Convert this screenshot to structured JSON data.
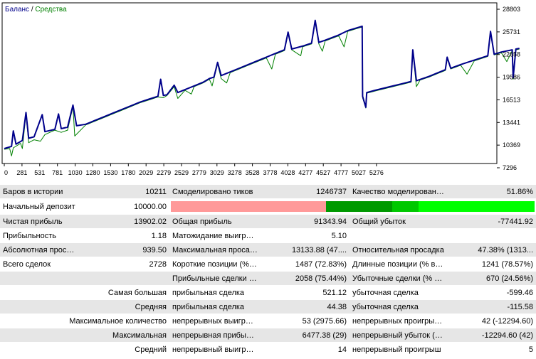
{
  "colors": {
    "balance": "#00008b",
    "equity": "#008000",
    "axis": "#000000",
    "quality_pink": "#ff9999",
    "quality_dark": "#009900",
    "quality_mid": "#00c800",
    "quality_bright": "#00ff00"
  },
  "chart_data": {
    "type": "line",
    "legend": {
      "balance": "Баланс",
      "separator": " / ",
      "equity": "Средства"
    },
    "x_ticks": [
      "0",
      "281",
      "531",
      "781",
      "1030",
      "1280",
      "1530",
      "1780",
      "2029",
      "2279",
      "2529",
      "2779",
      "3029",
      "3278",
      "3528",
      "3778",
      "4028",
      "4277",
      "4527",
      "4777",
      "5027",
      "5276"
    ],
    "y_ticks": [
      "28803",
      "25731",
      "22658",
      "19586",
      "16513",
      "13441",
      "10369",
      "7296"
    ],
    "xlim": [
      0,
      5450
    ],
    "ylim": [
      7296,
      28803
    ],
    "series": [
      {
        "name": "Баланс",
        "points": [
          [
            0,
            9900
          ],
          [
            80,
            10200
          ],
          [
            100,
            12300
          ],
          [
            130,
            10500
          ],
          [
            200,
            11000
          ],
          [
            240,
            14800
          ],
          [
            270,
            11300
          ],
          [
            330,
            11500
          ],
          [
            420,
            14500
          ],
          [
            450,
            12200
          ],
          [
            560,
            12500
          ],
          [
            600,
            14600
          ],
          [
            630,
            12600
          ],
          [
            700,
            12800
          ],
          [
            760,
            15800
          ],
          [
            800,
            13000
          ],
          [
            900,
            13200
          ],
          [
            1000,
            13700
          ],
          [
            1100,
            14200
          ],
          [
            1200,
            14700
          ],
          [
            1300,
            15200
          ],
          [
            1400,
            15700
          ],
          [
            1500,
            16200
          ],
          [
            1600,
            16600
          ],
          [
            1700,
            17000
          ],
          [
            1730,
            19300
          ],
          [
            1760,
            17100
          ],
          [
            1800,
            17200
          ],
          [
            1880,
            18500
          ],
          [
            1920,
            17500
          ],
          [
            2000,
            17900
          ],
          [
            2100,
            18400
          ],
          [
            2200,
            18900
          ],
          [
            2270,
            19400
          ],
          [
            2320,
            19600
          ],
          [
            2360,
            21600
          ],
          [
            2400,
            19800
          ],
          [
            2500,
            20300
          ],
          [
            2600,
            20800
          ],
          [
            2700,
            21300
          ],
          [
            2800,
            21800
          ],
          [
            2900,
            22300
          ],
          [
            3000,
            22800
          ],
          [
            3100,
            23300
          ],
          [
            3140,
            25700
          ],
          [
            3180,
            23400
          ],
          [
            3300,
            23800
          ],
          [
            3400,
            24200
          ],
          [
            3440,
            27300
          ],
          [
            3480,
            24300
          ],
          [
            3550,
            24600
          ],
          [
            3700,
            25300
          ],
          [
            3800,
            25900
          ],
          [
            3960,
            26500
          ],
          [
            3965,
            17000
          ],
          [
            4000,
            15500
          ],
          [
            4010,
            17500
          ],
          [
            4100,
            17800
          ],
          [
            4200,
            18100
          ],
          [
            4300,
            18400
          ],
          [
            4400,
            18700
          ],
          [
            4500,
            19000
          ],
          [
            4520,
            23300
          ],
          [
            4560,
            19100
          ],
          [
            4700,
            19700
          ],
          [
            4800,
            20200
          ],
          [
            4880,
            20600
          ],
          [
            4900,
            22300
          ],
          [
            4940,
            20800
          ],
          [
            5050,
            21300
          ],
          [
            5200,
            21900
          ],
          [
            5350,
            22500
          ],
          [
            5380,
            25800
          ],
          [
            5420,
            22700
          ],
          [
            5500,
            23000
          ],
          [
            5620,
            23300
          ],
          [
            5630,
            19500
          ],
          [
            5660,
            23400
          ],
          [
            5700,
            23500
          ]
        ]
      },
      {
        "name": "Средства",
        "points": [
          [
            0,
            9800
          ],
          [
            60,
            9900
          ],
          [
            80,
            8900
          ],
          [
            100,
            10000
          ],
          [
            180,
            10600
          ],
          [
            200,
            9900
          ],
          [
            240,
            14600
          ],
          [
            270,
            10700
          ],
          [
            330,
            11100
          ],
          [
            400,
            10900
          ],
          [
            450,
            11800
          ],
          [
            560,
            12400
          ],
          [
            630,
            12100
          ],
          [
            700,
            12400
          ],
          [
            760,
            15600
          ],
          [
            780,
            11600
          ],
          [
            900,
            13100
          ],
          [
            1000,
            13600
          ],
          [
            1100,
            14100
          ],
          [
            1200,
            14600
          ],
          [
            1300,
            15100
          ],
          [
            1400,
            15600
          ],
          [
            1500,
            16100
          ],
          [
            1600,
            16500
          ],
          [
            1700,
            16900
          ],
          [
            1760,
            16800
          ],
          [
            1800,
            17100
          ],
          [
            1880,
            18300
          ],
          [
            1920,
            16700
          ],
          [
            2000,
            17800
          ],
          [
            2070,
            17300
          ],
          [
            2100,
            18300
          ],
          [
            2200,
            18800
          ],
          [
            2270,
            19300
          ],
          [
            2300,
            18400
          ],
          [
            2360,
            21400
          ],
          [
            2400,
            19400
          ],
          [
            2460,
            18800
          ],
          [
            2500,
            20200
          ],
          [
            2600,
            20700
          ],
          [
            2700,
            21200
          ],
          [
            2800,
            21700
          ],
          [
            2900,
            22200
          ],
          [
            2960,
            20700
          ],
          [
            3000,
            22700
          ],
          [
            3100,
            23200
          ],
          [
            3140,
            25500
          ],
          [
            3180,
            23300
          ],
          [
            3280,
            22500
          ],
          [
            3300,
            23700
          ],
          [
            3400,
            24100
          ],
          [
            3440,
            27100
          ],
          [
            3480,
            24100
          ],
          [
            3520,
            23100
          ],
          [
            3550,
            24500
          ],
          [
            3700,
            25200
          ],
          [
            3760,
            23700
          ],
          [
            3800,
            25800
          ],
          [
            3960,
            26400
          ],
          [
            3965,
            16800
          ],
          [
            4000,
            15400
          ],
          [
            4010,
            17400
          ],
          [
            4100,
            17700
          ],
          [
            4200,
            18000
          ],
          [
            4300,
            18300
          ],
          [
            4400,
            18600
          ],
          [
            4500,
            18900
          ],
          [
            4520,
            23100
          ],
          [
            4560,
            18300
          ],
          [
            4600,
            19200
          ],
          [
            4700,
            19600
          ],
          [
            4800,
            20100
          ],
          [
            4880,
            20500
          ],
          [
            4900,
            22100
          ],
          [
            4940,
            20700
          ],
          [
            5050,
            21200
          ],
          [
            5120,
            20000
          ],
          [
            5200,
            21800
          ],
          [
            5350,
            22400
          ],
          [
            5380,
            25600
          ],
          [
            5420,
            22600
          ],
          [
            5500,
            22900
          ],
          [
            5560,
            21700
          ],
          [
            5620,
            23200
          ],
          [
            5630,
            19300
          ],
          [
            5660,
            23300
          ],
          [
            5700,
            23400
          ]
        ]
      }
    ]
  },
  "report": {
    "r1": {
      "a_label": "Баров в истории",
      "a_val": "10211",
      "b_label": "Смоделировано тиков",
      "b_val": "1246737",
      "c_label": "Качество моделирования",
      "c_val": "51.86%"
    },
    "r2": {
      "a_label": "Начальный депозит",
      "a_val": "10000.00"
    },
    "r3": {
      "a_label": "Чистая прибыль",
      "a_val": "13902.02",
      "b_label": "Общая прибыль",
      "b_val": "91343.94",
      "c_label": "Общий убыток",
      "c_val": "-77441.92"
    },
    "r4": {
      "a_label": "Прибыльность",
      "a_val": "1.18",
      "b_label": "Матожидание выигрыша",
      "b_val": "5.10"
    },
    "r5": {
      "a_label": "Абсолютная просадка",
      "a_val": "939.50",
      "b_label": "Максимальная просадка",
      "b_val": "13133.88 (47....",
      "c_label": "Относительная просадка",
      "c_val": "47.38% (1313..."
    },
    "r6": {
      "a_label": "Всего сделок",
      "a_val": "2728",
      "b_label": "Короткие позиции (% вы...",
      "b_val": "1487 (72.83%)",
      "c_label": "Длинные позиции (% вы...",
      "c_val": "1241 (78.57%)"
    },
    "r7": {
      "b_label": "Прибыльные сделки (% о...",
      "b_val": "2058 (75.44%)",
      "c_label": "Убыточные сделки (% от...",
      "c_val": "670 (24.56%)"
    },
    "r8": {
      "a_label": "Самая большая",
      "b_label": "прибыльная сделка",
      "b_val": "521.12",
      "c_label": "убыточная сделка",
      "c_val": "-599.46"
    },
    "r9": {
      "a_label": "Средняя",
      "b_label": "прибыльная сделка",
      "b_val": "44.38",
      "c_label": "убыточная сделка",
      "c_val": "-115.58"
    },
    "r10": {
      "a_label": "Максимальное количество",
      "b_label": "непрерывных выигрыше...",
      "b_val": "53 (2975.66)",
      "c_label": "непрерывных проигрыше...",
      "c_val": "42 (-12294.60)"
    },
    "r11": {
      "a_label": "Максимальная",
      "b_label": "непрерывная прибыль (ч...",
      "b_val": "6477.38 (29)",
      "c_label": "непрерывный убыток (чи...",
      "c_val": "-12294.60 (42)"
    },
    "r12": {
      "a_label": "Средний",
      "b_label": "непрерывный выигрыш",
      "b_val": "14",
      "c_label": "непрерывный проигрыш",
      "c_val": "5"
    }
  }
}
